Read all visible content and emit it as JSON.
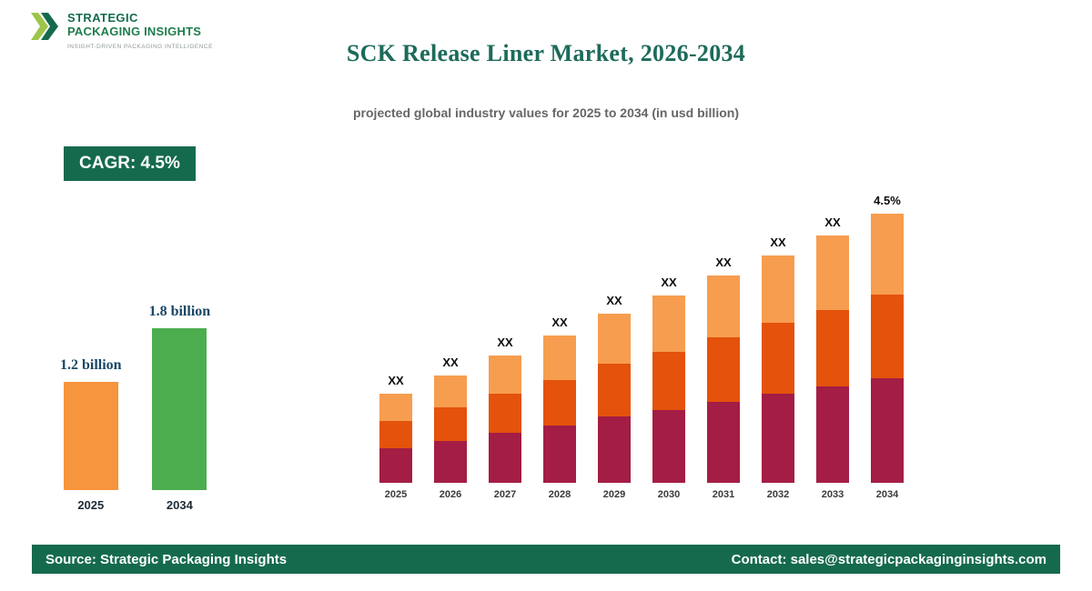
{
  "logo": {
    "line1": "STRATEGIC",
    "line2": "PACKAGING INSIGHTS",
    "tagline": "INSIGHT-DRIVEN PACKAGING INTELLIGENCE"
  },
  "header": {
    "title": "SCK Release Liner Market, 2026-2034",
    "subtitle": "projected global industry values for 2025 to 2034 (in usd billion)"
  },
  "cagr_badge": "CAGR: 4.5%",
  "colors": {
    "brand_green": "#156a4e",
    "title_color": "#1d6b5a",
    "label_navy": "#1a4766",
    "logo_green_dark": "#156a4e",
    "logo_green_mid": "#1f7d4c",
    "logo_green_light": "#9dc54a",
    "mini_orange": "#f6953e",
    "mini_green": "#4cae4f",
    "segment_maroon": "#a31d44",
    "segment_dark_orange": "#e4520b",
    "segment_light_orange": "#f79d4f"
  },
  "chart_data": [
    {
      "id": "market-size-comparison",
      "type": "bar",
      "categories": [
        "2025",
        "2034"
      ],
      "values": [
        1.2,
        1.8
      ],
      "value_labels": [
        "1.2 billion",
        "1.8 billion"
      ],
      "bar_colors": [
        "#f6953e",
        "#4cae4f"
      ],
      "unit": "usd billion"
    },
    {
      "id": "yearly-stacked-projection",
      "type": "stacked-bar",
      "categories": [
        "2025",
        "2026",
        "2027",
        "2028",
        "2029",
        "2030",
        "2031",
        "2032",
        "2033",
        "2034"
      ],
      "bar_labels": [
        "XX",
        "XX",
        "XX",
        "XX",
        "XX",
        "XX",
        "XX",
        "XX",
        "XX",
        "4.5%"
      ],
      "series": [
        {
          "name": "bottom-segment",
          "color": "#a31d44",
          "values": [
            38,
            46,
            55,
            63,
            73,
            80,
            89,
            98,
            106,
            115
          ]
        },
        {
          "name": "middle-segment",
          "color": "#e4520b",
          "values": [
            30,
            37,
            43,
            50,
            58,
            64,
            71,
            78,
            84,
            92
          ]
        },
        {
          "name": "top-segment",
          "color": "#f79d4f",
          "values": [
            30,
            35,
            42,
            49,
            55,
            62,
            68,
            74,
            82,
            89
          ]
        }
      ],
      "unit": "usd billion (values masked as XX on chart)"
    }
  ],
  "footer": {
    "source": "Source: Strategic Packaging Insights",
    "contact": "Contact: sales@strategicpackaginginsights.com"
  }
}
